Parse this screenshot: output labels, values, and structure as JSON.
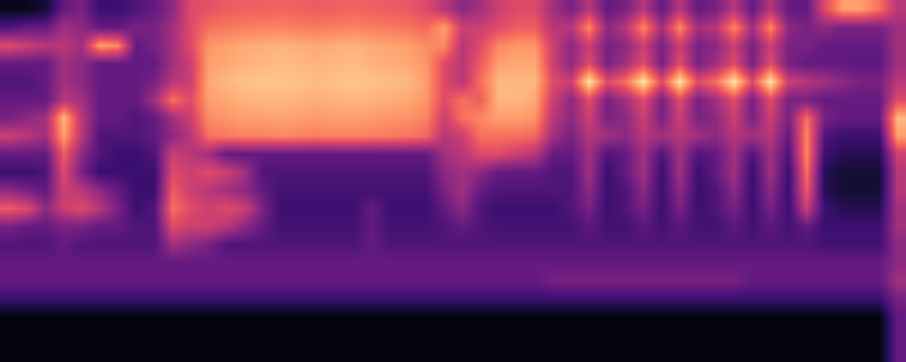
{
  "chart_data": {
    "type": "heatmap",
    "tick_labels": false,
    "color": "magma",
    "zlim": [
      0,
      1
    ],
    "cells": [
      [
        0.05,
        0.05,
        0.1,
        0.3,
        0.35,
        0.2,
        0.2,
        0.25,
        0.3,
        0.4,
        0.6,
        0.62,
        0.65,
        0.66,
        0.66,
        0.67,
        0.66,
        0.65,
        0.66,
        0.67,
        0.66,
        0.65,
        0.64,
        0.6,
        0.5,
        0.4,
        0.45,
        0.55,
        0.6,
        0.6,
        0.45,
        0.35,
        0.5,
        0.3,
        0.35,
        0.5,
        0.3,
        0.5,
        0.3,
        0.35,
        0.5,
        0.3,
        0.5,
        0.3,
        0.3,
        0.6,
        0.8,
        0.8,
        0.7,
        0.5
      ],
      [
        0.25,
        0.3,
        0.3,
        0.45,
        0.4,
        0.3,
        0.3,
        0.35,
        0.35,
        0.45,
        0.6,
        0.7,
        0.72,
        0.73,
        0.74,
        0.74,
        0.73,
        0.72,
        0.73,
        0.74,
        0.73,
        0.72,
        0.71,
        0.68,
        0.8,
        0.55,
        0.55,
        0.6,
        0.65,
        0.65,
        0.5,
        0.5,
        0.75,
        0.4,
        0.5,
        0.75,
        0.45,
        0.75,
        0.45,
        0.5,
        0.75,
        0.45,
        0.75,
        0.4,
        0.35,
        0.4,
        0.35,
        0.35,
        0.35,
        0.45
      ],
      [
        0.6,
        0.55,
        0.5,
        0.5,
        0.45,
        0.8,
        0.75,
        0.3,
        0.35,
        0.45,
        0.6,
        0.78,
        0.8,
        0.82,
        0.83,
        0.84,
        0.83,
        0.82,
        0.83,
        0.84,
        0.82,
        0.81,
        0.8,
        0.76,
        0.75,
        0.5,
        0.6,
        0.75,
        0.78,
        0.78,
        0.55,
        0.4,
        0.55,
        0.35,
        0.4,
        0.55,
        0.35,
        0.55,
        0.35,
        0.4,
        0.55,
        0.35,
        0.55,
        0.35,
        0.35,
        0.3,
        0.3,
        0.3,
        0.3,
        0.45
      ],
      [
        0.3,
        0.3,
        0.3,
        0.45,
        0.4,
        0.3,
        0.3,
        0.3,
        0.3,
        0.45,
        0.55,
        0.8,
        0.82,
        0.84,
        0.85,
        0.86,
        0.85,
        0.84,
        0.85,
        0.86,
        0.84,
        0.83,
        0.82,
        0.78,
        0.6,
        0.5,
        0.65,
        0.8,
        0.82,
        0.82,
        0.55,
        0.4,
        0.6,
        0.35,
        0.45,
        0.6,
        0.35,
        0.6,
        0.35,
        0.45,
        0.6,
        0.35,
        0.6,
        0.35,
        0.3,
        0.3,
        0.3,
        0.28,
        0.28,
        0.45
      ],
      [
        0.25,
        0.25,
        0.3,
        0.45,
        0.4,
        0.3,
        0.3,
        0.3,
        0.35,
        0.5,
        0.55,
        0.82,
        0.85,
        0.87,
        0.88,
        0.88,
        0.87,
        0.86,
        0.87,
        0.88,
        0.87,
        0.86,
        0.85,
        0.8,
        0.6,
        0.5,
        0.7,
        0.85,
        0.85,
        0.85,
        0.6,
        0.55,
        0.95,
        0.6,
        0.7,
        0.95,
        0.6,
        0.95,
        0.6,
        0.7,
        0.95,
        0.6,
        0.95,
        0.55,
        0.5,
        0.45,
        0.4,
        0.35,
        0.35,
        0.5
      ],
      [
        0.3,
        0.3,
        0.3,
        0.5,
        0.45,
        0.3,
        0.3,
        0.3,
        0.45,
        0.7,
        0.6,
        0.8,
        0.82,
        0.84,
        0.85,
        0.85,
        0.84,
        0.83,
        0.84,
        0.85,
        0.84,
        0.83,
        0.82,
        0.78,
        0.6,
        0.7,
        0.65,
        0.85,
        0.85,
        0.82,
        0.55,
        0.4,
        0.6,
        0.35,
        0.45,
        0.6,
        0.35,
        0.6,
        0.35,
        0.45,
        0.6,
        0.35,
        0.6,
        0.35,
        0.35,
        0.3,
        0.3,
        0.3,
        0.3,
        0.6
      ],
      [
        0.35,
        0.4,
        0.45,
        0.85,
        0.5,
        0.3,
        0.3,
        0.25,
        0.3,
        0.45,
        0.55,
        0.76,
        0.78,
        0.8,
        0.8,
        0.81,
        0.8,
        0.79,
        0.8,
        0.8,
        0.79,
        0.78,
        0.77,
        0.74,
        0.55,
        0.7,
        0.75,
        0.8,
        0.8,
        0.78,
        0.5,
        0.4,
        0.55,
        0.35,
        0.4,
        0.55,
        0.35,
        0.55,
        0.35,
        0.4,
        0.55,
        0.35,
        0.55,
        0.35,
        0.7,
        0.35,
        0.3,
        0.3,
        0.3,
        0.85
      ],
      [
        0.55,
        0.5,
        0.45,
        0.8,
        0.5,
        0.25,
        0.25,
        0.25,
        0.3,
        0.4,
        0.5,
        0.7,
        0.72,
        0.74,
        0.74,
        0.75,
        0.74,
        0.73,
        0.74,
        0.74,
        0.73,
        0.72,
        0.71,
        0.68,
        0.5,
        0.55,
        0.7,
        0.7,
        0.7,
        0.68,
        0.45,
        0.35,
        0.5,
        0.45,
        0.4,
        0.5,
        0.45,
        0.5,
        0.45,
        0.4,
        0.5,
        0.45,
        0.5,
        0.3,
        0.75,
        0.25,
        0.2,
        0.2,
        0.2,
        0.8
      ],
      [
        0.3,
        0.3,
        0.3,
        0.65,
        0.4,
        0.25,
        0.2,
        0.2,
        0.25,
        0.55,
        0.5,
        0.45,
        0.3,
        0.3,
        0.3,
        0.3,
        0.3,
        0.3,
        0.3,
        0.3,
        0.3,
        0.3,
        0.3,
        0.3,
        0.45,
        0.5,
        0.6,
        0.6,
        0.55,
        0.5,
        0.3,
        0.3,
        0.45,
        0.25,
        0.3,
        0.45,
        0.25,
        0.45,
        0.25,
        0.3,
        0.45,
        0.25,
        0.45,
        0.25,
        0.75,
        0.2,
        0.15,
        0.15,
        0.15,
        0.55
      ],
      [
        0.2,
        0.2,
        0.25,
        0.6,
        0.35,
        0.2,
        0.2,
        0.2,
        0.2,
        0.6,
        0.55,
        0.6,
        0.55,
        0.45,
        0.25,
        0.25,
        0.25,
        0.25,
        0.25,
        0.25,
        0.25,
        0.25,
        0.25,
        0.25,
        0.4,
        0.45,
        0.4,
        0.3,
        0.3,
        0.3,
        0.25,
        0.25,
        0.45,
        0.2,
        0.3,
        0.45,
        0.2,
        0.45,
        0.2,
        0.3,
        0.45,
        0.2,
        0.45,
        0.2,
        0.7,
        0.15,
        0.1,
        0.1,
        0.1,
        0.5
      ],
      [
        0.4,
        0.35,
        0.3,
        0.55,
        0.5,
        0.4,
        0.3,
        0.2,
        0.2,
        0.65,
        0.55,
        0.5,
        0.45,
        0.4,
        0.3,
        0.22,
        0.22,
        0.22,
        0.22,
        0.22,
        0.22,
        0.22,
        0.22,
        0.22,
        0.35,
        0.45,
        0.3,
        0.25,
        0.25,
        0.25,
        0.25,
        0.25,
        0.4,
        0.2,
        0.25,
        0.4,
        0.2,
        0.4,
        0.2,
        0.25,
        0.4,
        0.2,
        0.4,
        0.2,
        0.65,
        0.15,
        0.1,
        0.1,
        0.1,
        0.5
      ],
      [
        0.65,
        0.6,
        0.4,
        0.55,
        0.6,
        0.5,
        0.35,
        0.2,
        0.25,
        0.7,
        0.6,
        0.55,
        0.6,
        0.55,
        0.35,
        0.2,
        0.2,
        0.2,
        0.2,
        0.2,
        0.3,
        0.2,
        0.2,
        0.2,
        0.3,
        0.4,
        0.25,
        0.2,
        0.2,
        0.2,
        0.2,
        0.25,
        0.35,
        0.2,
        0.25,
        0.35,
        0.2,
        0.35,
        0.2,
        0.25,
        0.35,
        0.2,
        0.35,
        0.2,
        0.55,
        0.2,
        0.15,
        0.15,
        0.15,
        0.45
      ],
      [
        0.35,
        0.3,
        0.3,
        0.35,
        0.35,
        0.3,
        0.3,
        0.25,
        0.25,
        0.6,
        0.55,
        0.55,
        0.5,
        0.4,
        0.3,
        0.22,
        0.22,
        0.22,
        0.22,
        0.22,
        0.3,
        0.22,
        0.22,
        0.22,
        0.25,
        0.3,
        0.25,
        0.22,
        0.22,
        0.22,
        0.22,
        0.22,
        0.28,
        0.22,
        0.22,
        0.28,
        0.22,
        0.28,
        0.22,
        0.22,
        0.28,
        0.22,
        0.28,
        0.22,
        0.3,
        0.2,
        0.2,
        0.2,
        0.2,
        0.45
      ],
      [
        0.25,
        0.25,
        0.25,
        0.3,
        0.25,
        0.25,
        0.25,
        0.25,
        0.25,
        0.45,
        0.4,
        0.35,
        0.25,
        0.25,
        0.25,
        0.25,
        0.25,
        0.25,
        0.25,
        0.25,
        0.3,
        0.25,
        0.25,
        0.25,
        0.25,
        0.25,
        0.25,
        0.25,
        0.25,
        0.25,
        0.25,
        0.25,
        0.25,
        0.25,
        0.25,
        0.25,
        0.25,
        0.25,
        0.25,
        0.25,
        0.25,
        0.25,
        0.25,
        0.25,
        0.25,
        0.22,
        0.22,
        0.22,
        0.22,
        0.4
      ],
      [
        0.3,
        0.3,
        0.3,
        0.3,
        0.3,
        0.3,
        0.3,
        0.3,
        0.3,
        0.3,
        0.3,
        0.3,
        0.3,
        0.3,
        0.3,
        0.3,
        0.3,
        0.3,
        0.3,
        0.3,
        0.3,
        0.3,
        0.3,
        0.3,
        0.3,
        0.3,
        0.3,
        0.3,
        0.3,
        0.3,
        0.3,
        0.3,
        0.3,
        0.3,
        0.3,
        0.3,
        0.3,
        0.3,
        0.3,
        0.3,
        0.3,
        0.3,
        0.3,
        0.3,
        0.3,
        0.3,
        0.3,
        0.3,
        0.3,
        0.4
      ],
      [
        0.3,
        0.3,
        0.3,
        0.3,
        0.3,
        0.3,
        0.3,
        0.3,
        0.3,
        0.3,
        0.3,
        0.3,
        0.3,
        0.3,
        0.3,
        0.3,
        0.3,
        0.3,
        0.3,
        0.3,
        0.3,
        0.3,
        0.3,
        0.3,
        0.3,
        0.3,
        0.3,
        0.3,
        0.3,
        0.3,
        0.35,
        0.35,
        0.35,
        0.35,
        0.35,
        0.35,
        0.35,
        0.35,
        0.35,
        0.35,
        0.35,
        0.3,
        0.3,
        0.3,
        0.3,
        0.3,
        0.3,
        0.3,
        0.3,
        0.45
      ],
      [
        0.2,
        0.2,
        0.2,
        0.2,
        0.2,
        0.2,
        0.2,
        0.2,
        0.2,
        0.2,
        0.2,
        0.2,
        0.2,
        0.2,
        0.2,
        0.2,
        0.2,
        0.2,
        0.2,
        0.2,
        0.2,
        0.2,
        0.2,
        0.2,
        0.2,
        0.2,
        0.2,
        0.2,
        0.2,
        0.2,
        0.2,
        0.2,
        0.2,
        0.2,
        0.2,
        0.2,
        0.2,
        0.2,
        0.2,
        0.2,
        0.2,
        0.2,
        0.2,
        0.2,
        0.2,
        0.2,
        0.2,
        0.2,
        0.2,
        0.35
      ],
      [
        0.02,
        0.02,
        0.02,
        0.02,
        0.02,
        0.02,
        0.02,
        0.02,
        0.02,
        0.02,
        0.02,
        0.02,
        0.02,
        0.02,
        0.02,
        0.02,
        0.02,
        0.02,
        0.02,
        0.02,
        0.02,
        0.02,
        0.02,
        0.02,
        0.02,
        0.02,
        0.02,
        0.02,
        0.02,
        0.02,
        0.02,
        0.02,
        0.02,
        0.02,
        0.02,
        0.02,
        0.02,
        0.02,
        0.02,
        0.02,
        0.02,
        0.02,
        0.02,
        0.02,
        0.02,
        0.02,
        0.02,
        0.02,
        0.02,
        0.3
      ],
      [
        0.02,
        0.02,
        0.02,
        0.02,
        0.02,
        0.02,
        0.02,
        0.02,
        0.02,
        0.02,
        0.02,
        0.02,
        0.02,
        0.02,
        0.02,
        0.02,
        0.02,
        0.02,
        0.02,
        0.02,
        0.02,
        0.02,
        0.02,
        0.02,
        0.02,
        0.02,
        0.02,
        0.02,
        0.02,
        0.02,
        0.02,
        0.02,
        0.02,
        0.02,
        0.02,
        0.02,
        0.02,
        0.02,
        0.02,
        0.02,
        0.02,
        0.02,
        0.02,
        0.02,
        0.02,
        0.02,
        0.02,
        0.02,
        0.02,
        0.3
      ],
      [
        0.02,
        0.02,
        0.02,
        0.02,
        0.02,
        0.02,
        0.02,
        0.02,
        0.02,
        0.02,
        0.02,
        0.02,
        0.02,
        0.02,
        0.02,
        0.02,
        0.02,
        0.02,
        0.02,
        0.02,
        0.02,
        0.02,
        0.02,
        0.02,
        0.02,
        0.02,
        0.02,
        0.02,
        0.02,
        0.02,
        0.02,
        0.02,
        0.02,
        0.02,
        0.02,
        0.02,
        0.02,
        0.02,
        0.02,
        0.02,
        0.02,
        0.02,
        0.02,
        0.02,
        0.02,
        0.02,
        0.02,
        0.02,
        0.02,
        0.3
      ]
    ]
  }
}
